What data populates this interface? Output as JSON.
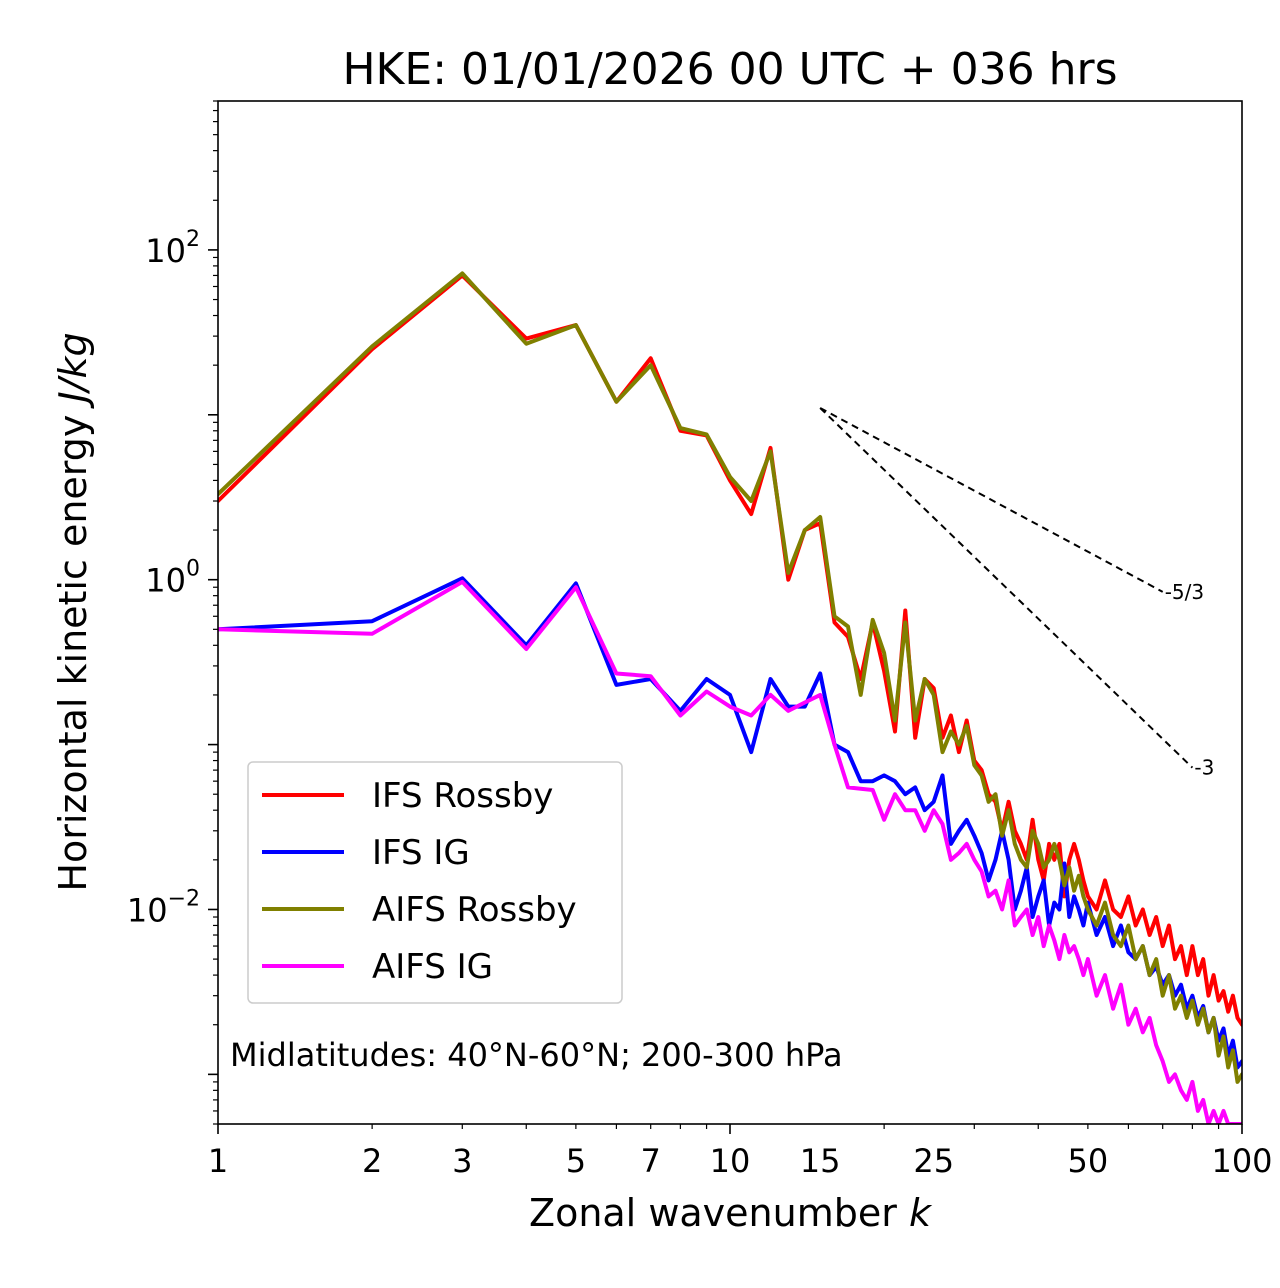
{
  "chart_data": {
    "type": "line",
    "title": "HKE: 01/01/2026 00 UTC + 036 hrs",
    "xlabel": {
      "text": "Zonal wavenumber ",
      "var": "k"
    },
    "ylabel": {
      "text": "Horizontal kinetic energy ",
      "unit": "J/kg"
    },
    "xscale": "log",
    "yscale": "log",
    "xlim": [
      1,
      100
    ],
    "ylim": [
      0.0005,
      800
    ],
    "xticks": [
      {
        "value": 1,
        "label": "1"
      },
      {
        "value": 2,
        "label": "2"
      },
      {
        "value": 3,
        "label": "3"
      },
      {
        "value": 5,
        "label": "5"
      },
      {
        "value": 7,
        "label": "7"
      },
      {
        "value": 10,
        "label": "10"
      },
      {
        "value": 15,
        "label": "15"
      },
      {
        "value": 25,
        "label": "25"
      },
      {
        "value": 50,
        "label": "50"
      },
      {
        "value": 100,
        "label": "100"
      }
    ],
    "yticks": [
      {
        "value": 100,
        "base": "10",
        "exp": "2"
      },
      {
        "value": 1,
        "base": "10",
        "exp": "0"
      },
      {
        "value": 0.01,
        "base": "10",
        "exp": "−2"
      }
    ],
    "annotation": "Midlatitudes: 40°N-60°N; 200-300 hPa",
    "legend_position": "lower-left",
    "reference_slopes": [
      {
        "label": "-5/3",
        "slope": -1.6667,
        "k0": 15,
        "e0": 11,
        "k1": 70
      },
      {
        "label": "-3",
        "slope": -3,
        "k0": 15,
        "e0": 11,
        "k1": 80
      }
    ],
    "series": [
      {
        "name": "IFS Rossby",
        "color": "#ff0000",
        "x": [
          1,
          2,
          3,
          4,
          5,
          6,
          7,
          8,
          9,
          10,
          11,
          12,
          13,
          14,
          15,
          16,
          17,
          18,
          19,
          20,
          21,
          22,
          23,
          24,
          25,
          26,
          27,
          28,
          29,
          30,
          31,
          32,
          33,
          34,
          35,
          36,
          37,
          38,
          39,
          40,
          41,
          42,
          43,
          44,
          45,
          46,
          47,
          48,
          49,
          50,
          52,
          54,
          56,
          58,
          60,
          62,
          64,
          66,
          68,
          70,
          72,
          74,
          76,
          78,
          80,
          82,
          84,
          86,
          88,
          90,
          92,
          94,
          96,
          98,
          100
        ],
        "y": [
          3.0,
          25,
          70,
          29,
          35,
          12,
          22,
          8,
          7.5,
          4.0,
          2.5,
          6.3,
          1.0,
          2.0,
          2.2,
          0.55,
          0.45,
          0.25,
          0.55,
          0.28,
          0.12,
          0.65,
          0.11,
          0.25,
          0.22,
          0.11,
          0.15,
          0.09,
          0.14,
          0.08,
          0.07,
          0.05,
          0.045,
          0.03,
          0.045,
          0.03,
          0.025,
          0.02,
          0.035,
          0.02,
          0.015,
          0.025,
          0.02,
          0.025,
          0.012,
          0.02,
          0.025,
          0.02,
          0.015,
          0.012,
          0.01,
          0.015,
          0.01,
          0.009,
          0.012,
          0.008,
          0.01,
          0.007,
          0.009,
          0.006,
          0.008,
          0.005,
          0.006,
          0.004,
          0.006,
          0.004,
          0.005,
          0.003,
          0.004,
          0.0028,
          0.0032,
          0.0024,
          0.003,
          0.0022,
          0.002
        ]
      },
      {
        "name": "IFS IG",
        "color": "#0000ff",
        "x": [
          1,
          2,
          3,
          4,
          5,
          6,
          7,
          8,
          9,
          10,
          11,
          12,
          13,
          14,
          15,
          16,
          17,
          18,
          19,
          20,
          21,
          22,
          23,
          24,
          25,
          26,
          27,
          28,
          29,
          30,
          31,
          32,
          33,
          34,
          35,
          36,
          37,
          38,
          39,
          40,
          41,
          42,
          43,
          44,
          45,
          46,
          47,
          48,
          49,
          50,
          52,
          54,
          56,
          58,
          60,
          62,
          64,
          66,
          68,
          70,
          72,
          74,
          76,
          78,
          80,
          82,
          84,
          86,
          88,
          90,
          92,
          94,
          96,
          98,
          100
        ],
        "y": [
          0.5,
          0.56,
          1.02,
          0.4,
          0.95,
          0.23,
          0.25,
          0.16,
          0.25,
          0.2,
          0.09,
          0.25,
          0.17,
          0.17,
          0.27,
          0.1,
          0.09,
          0.06,
          0.06,
          0.065,
          0.06,
          0.05,
          0.055,
          0.04,
          0.045,
          0.065,
          0.025,
          0.03,
          0.035,
          0.028,
          0.022,
          0.015,
          0.02,
          0.03,
          0.02,
          0.01,
          0.013,
          0.018,
          0.009,
          0.012,
          0.015,
          0.008,
          0.011,
          0.01,
          0.019,
          0.009,
          0.012,
          0.01,
          0.008,
          0.011,
          0.007,
          0.009,
          0.006,
          0.008,
          0.0055,
          0.005,
          0.006,
          0.004,
          0.0045,
          0.0035,
          0.004,
          0.003,
          0.0035,
          0.0025,
          0.003,
          0.0022,
          0.0026,
          0.0018,
          0.0022,
          0.0016,
          0.0019,
          0.0013,
          0.0016,
          0.0011,
          0.0012
        ]
      },
      {
        "name": "AIFS Rossby",
        "color": "#808000",
        "x": [
          1,
          2,
          3,
          4,
          5,
          6,
          7,
          8,
          9,
          10,
          11,
          12,
          13,
          14,
          15,
          16,
          17,
          18,
          19,
          20,
          21,
          22,
          23,
          24,
          25,
          26,
          27,
          28,
          29,
          30,
          31,
          32,
          33,
          34,
          35,
          36,
          37,
          38,
          39,
          40,
          41,
          42,
          43,
          44,
          45,
          46,
          47,
          48,
          49,
          50,
          52,
          54,
          56,
          58,
          60,
          62,
          64,
          66,
          68,
          70,
          72,
          74,
          76,
          78,
          80,
          82,
          84,
          86,
          88,
          90,
          92,
          94,
          96,
          98,
          100
        ],
        "y": [
          3.3,
          26,
          72,
          27,
          35,
          12,
          20,
          8.3,
          7.6,
          4.2,
          3.0,
          6.0,
          1.1,
          2.0,
          2.4,
          0.6,
          0.52,
          0.2,
          0.57,
          0.36,
          0.14,
          0.55,
          0.14,
          0.25,
          0.2,
          0.09,
          0.12,
          0.1,
          0.13,
          0.075,
          0.065,
          0.045,
          0.05,
          0.028,
          0.04,
          0.025,
          0.02,
          0.018,
          0.03,
          0.025,
          0.018,
          0.02,
          0.025,
          0.02,
          0.014,
          0.018,
          0.013,
          0.016,
          0.012,
          0.01,
          0.008,
          0.011,
          0.007,
          0.006,
          0.008,
          0.005,
          0.006,
          0.004,
          0.005,
          0.003,
          0.004,
          0.0025,
          0.003,
          0.0022,
          0.0028,
          0.002,
          0.0025,
          0.0018,
          0.0022,
          0.0013,
          0.0017,
          0.0011,
          0.0014,
          0.0009,
          0.001
        ]
      },
      {
        "name": "AIFS IG",
        "color": "#ff00ff",
        "x": [
          1,
          2,
          3,
          4,
          5,
          6,
          7,
          8,
          9,
          10,
          11,
          12,
          13,
          14,
          15,
          16,
          17,
          18,
          19,
          20,
          21,
          22,
          23,
          24,
          25,
          26,
          27,
          28,
          29,
          30,
          31,
          32,
          33,
          34,
          35,
          36,
          37,
          38,
          39,
          40,
          41,
          42,
          43,
          44,
          45,
          46,
          47,
          48,
          49,
          50,
          52,
          54,
          56,
          58,
          60,
          62,
          64,
          66,
          68,
          70,
          72,
          74,
          76,
          78,
          80,
          82,
          84,
          86,
          88,
          90,
          92,
          94,
          96,
          98,
          100
        ],
        "y": [
          0.5,
          0.47,
          0.97,
          0.38,
          0.9,
          0.27,
          0.26,
          0.15,
          0.21,
          0.17,
          0.15,
          0.2,
          0.16,
          0.18,
          0.2,
          0.1,
          0.055,
          0.054,
          0.053,
          0.035,
          0.05,
          0.04,
          0.04,
          0.03,
          0.04,
          0.033,
          0.02,
          0.022,
          0.025,
          0.02,
          0.017,
          0.012,
          0.013,
          0.01,
          0.015,
          0.008,
          0.009,
          0.01,
          0.007,
          0.009,
          0.006,
          0.008,
          0.0065,
          0.005,
          0.007,
          0.0055,
          0.006,
          0.005,
          0.004,
          0.005,
          0.003,
          0.004,
          0.0025,
          0.0035,
          0.002,
          0.0025,
          0.0018,
          0.0022,
          0.0015,
          0.0012,
          0.0009,
          0.001,
          0.0008,
          0.0007,
          0.0009,
          0.0006,
          0.0007,
          0.0005,
          0.0006,
          0.0005,
          0.0006,
          0.0005,
          0.0005,
          0.0005,
          0.0005
        ]
      }
    ]
  }
}
